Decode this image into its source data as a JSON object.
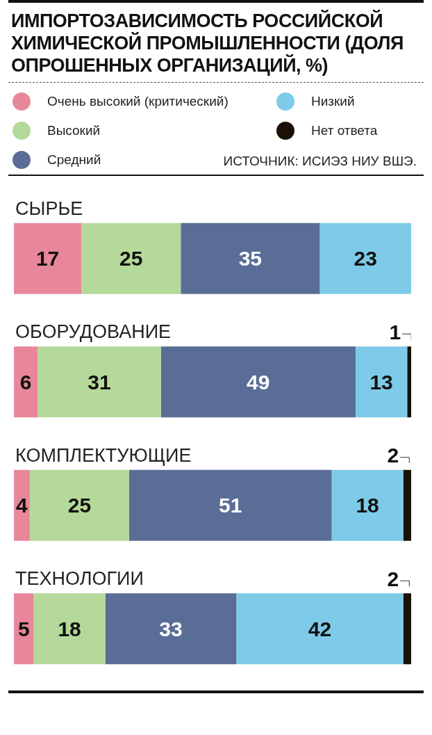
{
  "chart_data": {
    "type": "bar",
    "orientation": "horizontal",
    "stacked": true,
    "title": "ИМПОРТОЗАВИСИМОСТЬ РОССИЙСКОЙ ХИМИЧЕСКОЙ ПРОМЫШЛЕННОСТИ (ДОЛЯ ОПРОШЕННЫХ ОРГАНИЗАЦИЙ, %)",
    "annotations": [
      "ИСТОЧНИК: ИСИЭЗ НИУ ВШЭ."
    ],
    "categories": [
      "СЫРЬЕ",
      "ОБОРУДОВАНИЕ",
      "КОМПЛЕКТУЮЩИЕ",
      "ТЕХНОЛОГИИ"
    ],
    "series": [
      {
        "name": "Очень высокий (критический)",
        "color": "#e8879a",
        "values": [
          17,
          6,
          4,
          5
        ],
        "value_labels": [
          "17",
          "6",
          "4",
          "5"
        ]
      },
      {
        "name": "Высокий",
        "color": "#b5d99a",
        "values": [
          25,
          31,
          25,
          18
        ],
        "value_labels": [
          "25",
          "31",
          "25",
          "18"
        ]
      },
      {
        "name": "Средний",
        "color": "#5a6d96",
        "values": [
          35,
          49,
          51,
          33
        ],
        "value_labels": [
          "35",
          "49",
          "51",
          "33"
        ]
      },
      {
        "name": "Низкий",
        "color": "#7dcbe8",
        "values": [
          23,
          13,
          18,
          42
        ],
        "value_labels": [
          "23",
          "13",
          "18",
          "42"
        ]
      },
      {
        "name": "Нет ответа",
        "color": "#1a1008",
        "values": [
          null,
          1,
          2,
          2
        ],
        "value_labels": [
          null,
          "1",
          "2",
          "2"
        ]
      }
    ],
    "xlim": [
      0,
      100
    ],
    "legend": "top"
  }
}
